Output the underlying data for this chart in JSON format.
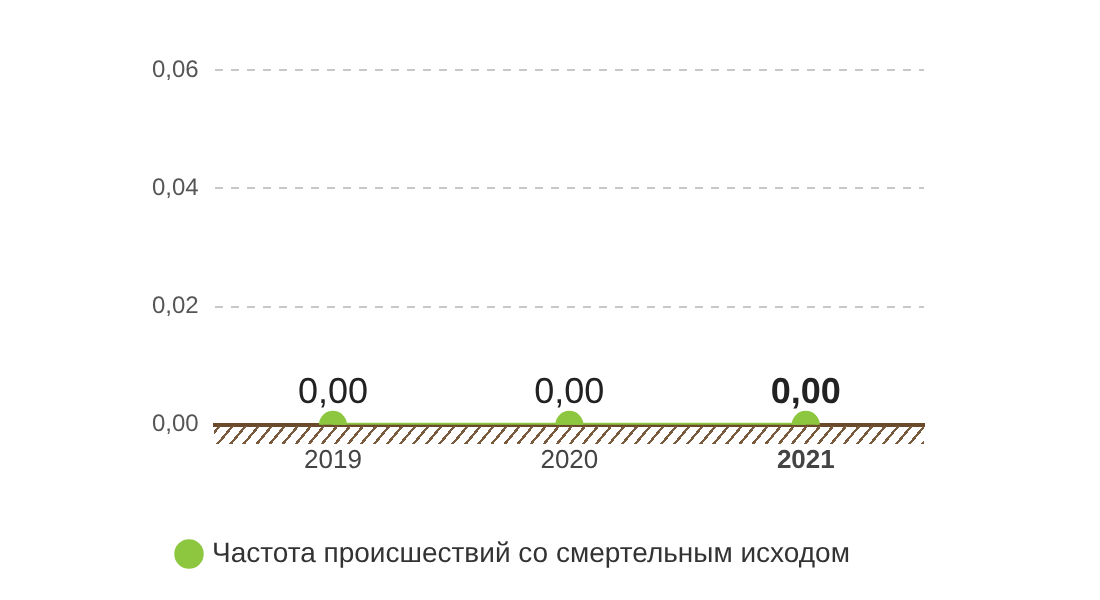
{
  "chart_data": {
    "type": "line",
    "categories": [
      "2019",
      "2020",
      "2021"
    ],
    "series": [
      {
        "name": "Частота происшествий со смертельным исходом",
        "color": "#8dc63f",
        "values": [
          0,
          0,
          0
        ],
        "value_labels": [
          "0,00",
          "0,00",
          "0,00"
        ]
      }
    ],
    "ylim": [
      0,
      0.06
    ],
    "yticks": [
      {
        "value": 0,
        "label": "0,00"
      },
      {
        "value": 0.02,
        "label": "0,02"
      },
      {
        "value": 0.04,
        "label": "0,04"
      },
      {
        "value": 0.06,
        "label": "0,06"
      }
    ],
    "grid": "y",
    "legend": "bottom left",
    "marker": "circle",
    "line_style": "solid"
  }
}
